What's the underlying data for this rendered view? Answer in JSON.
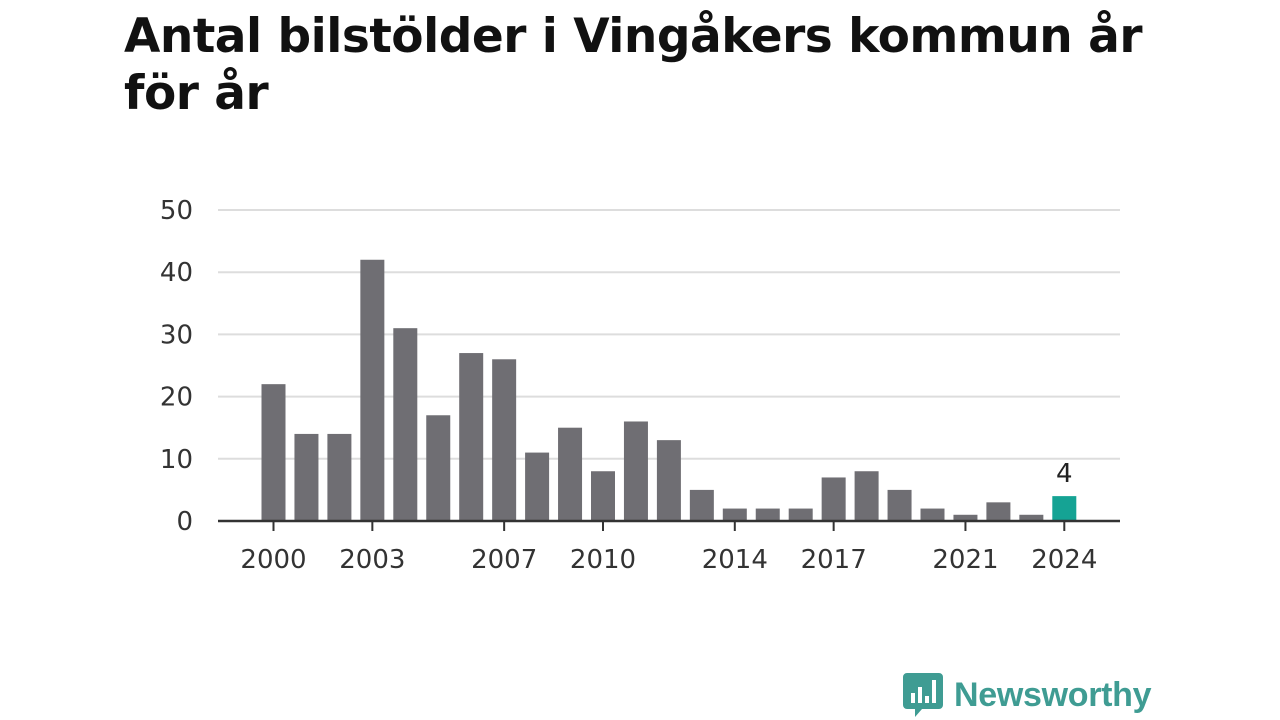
{
  "chart_data": {
    "type": "bar",
    "title": "Antal bilstölder i Vingåkers kommun år för år",
    "xlabel": "",
    "ylabel": "",
    "x": [
      2000,
      2001,
      2002,
      2003,
      2004,
      2005,
      2006,
      2007,
      2008,
      2009,
      2010,
      2011,
      2012,
      2013,
      2014,
      2015,
      2016,
      2017,
      2018,
      2019,
      2020,
      2021,
      2022,
      2023,
      2024
    ],
    "values": [
      22,
      14,
      14,
      42,
      31,
      17,
      27,
      26,
      11,
      15,
      8,
      16,
      13,
      5,
      2,
      2,
      2,
      7,
      8,
      5,
      2,
      1,
      3,
      1,
      4
    ],
    "ylim": [
      0,
      50
    ],
    "yticks": [
      0,
      10,
      20,
      30,
      40,
      50
    ],
    "xticks": [
      2000,
      2003,
      2007,
      2010,
      2014,
      2017,
      2021,
      2024
    ],
    "highlight": {
      "x": 2024,
      "label": "4"
    },
    "grid": true,
    "colors": {
      "bar": "#6f6e73",
      "highlight": "#15a394",
      "grid": "#dddddd",
      "axis": "#333333"
    }
  },
  "brand": {
    "name": "Newsworthy",
    "icon": "chart-speech-bubble-icon",
    "color": "#3f9c93"
  }
}
